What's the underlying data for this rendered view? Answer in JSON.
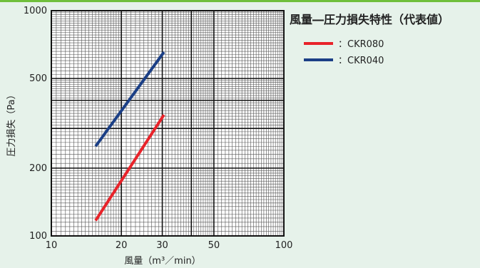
{
  "chart_data": {
    "type": "line",
    "title": "風量―圧力損失特性（代表値）",
    "xlabel": "風量（m³／min）",
    "ylabel": "圧力損失（Pa）",
    "x_scale": "log",
    "y_scale": "log",
    "xlim": [
      10,
      100
    ],
    "ylim": [
      100,
      1000
    ],
    "x_ticks": [
      10,
      20,
      30,
      50,
      100
    ],
    "y_ticks": [
      100,
      200,
      500,
      1000
    ],
    "grid": true,
    "legend_position": "top-right, outside plot",
    "series": [
      {
        "name": "：CKR080",
        "color": "#e8232a",
        "x": [
          15.5,
          30.5
        ],
        "y": [
          117,
          345
        ]
      },
      {
        "name": "：CKR040",
        "color": "#1b3f86",
        "x": [
          15.5,
          30.5
        ],
        "y": [
          250,
          655
        ]
      }
    ]
  }
}
